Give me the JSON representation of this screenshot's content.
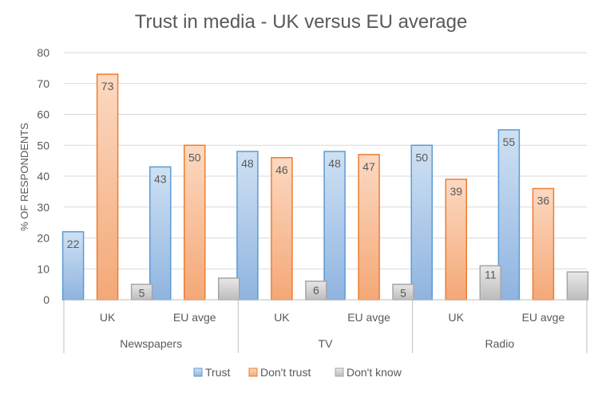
{
  "chart_data": {
    "type": "bar",
    "title": "Trust in media - UK versus EU average",
    "ylabel": "% OF RESPONDENTS",
    "xlabel": "",
    "ylim": [
      0,
      80
    ],
    "yticks": [
      0,
      10,
      20,
      30,
      40,
      50,
      60,
      70,
      80
    ],
    "grid": true,
    "legend_position": "bottom",
    "groups": [
      {
        "label": "Newspapers",
        "categories": [
          "UK",
          "EU avge"
        ]
      },
      {
        "label": "TV",
        "categories": [
          "UK",
          "EU avge"
        ]
      },
      {
        "label": "Radio",
        "categories": [
          "UK",
          "EU avge"
        ]
      }
    ],
    "series": [
      {
        "name": "Trust",
        "color": "#9dc3e6",
        "values": [
          22,
          43,
          48,
          48,
          50,
          55
        ]
      },
      {
        "name": "Don't trust",
        "color": "#f4b183",
        "values": [
          73,
          50,
          46,
          47,
          39,
          36
        ]
      },
      {
        "name": "Don't know",
        "color": "#c9c9c9",
        "values": [
          5,
          7,
          6,
          5,
          11,
          9
        ]
      }
    ],
    "data_labels": {
      "Trust": [
        "22",
        "43",
        "48",
        "48",
        "50",
        "55"
      ],
      "Don't trust": [
        "73",
        "50",
        "46",
        "47",
        "39",
        "36"
      ],
      "Don't know": [
        "5",
        "",
        "6",
        "5",
        "11",
        ""
      ]
    }
  },
  "colors": {
    "trust_fill_top": "#cfe1f3",
    "trust_fill_bottom": "#8fb4e0",
    "trust_stroke": "#5b9bd5",
    "dont_trust_fill_top": "#fcd9c2",
    "dont_trust_fill_bottom": "#f4a877",
    "dont_trust_stroke": "#ed7d31",
    "dont_know_fill_top": "#e8e8e8",
    "dont_know_fill_bottom": "#bdbdbd",
    "dont_know_stroke": "#a5a5a5",
    "text": "#595959",
    "grid": "#d9d9d9"
  }
}
